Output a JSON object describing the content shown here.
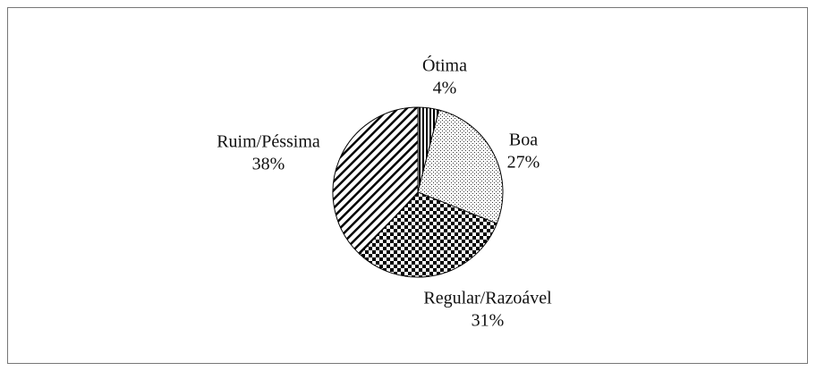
{
  "chart_data": {
    "type": "pie",
    "categories": [
      "Ótima",
      "Boa",
      "Regular/Razoável",
      "Ruim/Péssima"
    ],
    "values": [
      4,
      27,
      31,
      38
    ],
    "value_labels": [
      "4%",
      "27%",
      "31%",
      "38%"
    ],
    "patterns": [
      "vertical-lines",
      "dots",
      "checker",
      "diagonal-lines"
    ]
  }
}
